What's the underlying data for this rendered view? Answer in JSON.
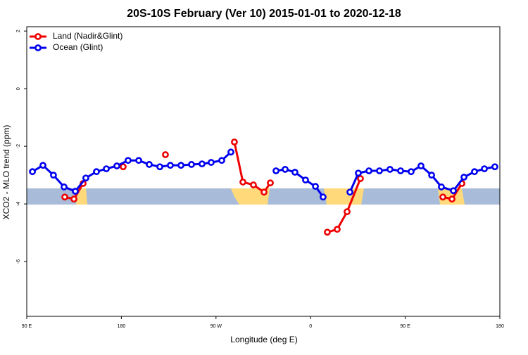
{
  "chart_data": {
    "type": "line",
    "title": "20S-10S February (Ver 10)   2015-01-01 to 2020-12-18",
    "x_label": "Longitude (deg E)",
    "y_label": "XCO2 - MLO trend (ppm)",
    "xlim": [
      90,
      540
    ],
    "xticks": [
      {
        "value": 90,
        "label": "90 E"
      },
      180,
      {
        "value": 270,
        "label": "90 W"
      },
      {
        "value": 360,
        "label": "0"
      },
      {
        "value": 450,
        "label": "90 E"
      },
      {
        "value": 540,
        "label": "180"
      }
    ],
    "ylim": [
      -7.9,
      2.15
    ],
    "yticks": [
      2,
      0,
      -2,
      -4,
      -6
    ],
    "legend": "top-left",
    "series": [
      {
        "name": "Land (Nadir&Glint)",
        "color": "#ee0000",
        "x": [
          126.2,
          134.9,
          143.6,
          null,
          181.7,
          null,
          221.9,
          null,
          287.5,
          295.6,
          305.6,
          315.7,
          321.7,
          null,
          375.9,
          385.3,
          394.7,
          407.4,
          null,
          485.8,
          494.5,
          503.9
        ],
        "values": [
          -3.76,
          -3.83,
          -3.29,
          null,
          -2.71,
          null,
          -2.29,
          null,
          -1.85,
          -3.24,
          -3.34,
          -3.59,
          -3.27,
          null,
          -4.98,
          -4.88,
          -4.27,
          -3.12,
          null,
          -3.76,
          -3.83,
          -3.29
        ]
      },
      {
        "name": "Ocean (Glint)",
        "color": "#0000ee",
        "x": [
          95.4,
          105.4,
          115.4,
          125.5,
          136.2,
          146.2,
          156.3,
          165.7,
          175.7,
          186.4,
          196.5,
          206.5,
          216.6,
          226.6,
          236.7,
          246.7,
          256.7,
          265.4,
          275.5,
          284.2,
          null,
          327.1,
          335.8,
          345.1,
          355.2,
          364.6,
          371.9,
          null,
          397.4,
          405.4,
          415.5,
          425.5,
          435.5,
          445.6,
          455.6,
          465.0,
          475.1,
          484.4,
          495.8,
          505.9,
          515.9,
          525.3,
          535.3
        ],
        "values": [
          -2.88,
          -2.66,
          -3.0,
          -3.41,
          -3.56,
          -3.1,
          -2.88,
          -2.78,
          -2.68,
          -2.49,
          -2.49,
          -2.63,
          -2.71,
          -2.66,
          -2.66,
          -2.63,
          -2.61,
          -2.56,
          -2.49,
          -2.2,
          null,
          -2.85,
          -2.8,
          -2.9,
          -3.17,
          -3.39,
          -3.76,
          null,
          -3.59,
          -2.93,
          -2.85,
          -2.85,
          -2.8,
          -2.85,
          -2.88,
          -2.68,
          -3.0,
          -3.41,
          -3.54,
          -3.07,
          -2.88,
          -2.78,
          -2.71
        ]
      }
    ]
  }
}
